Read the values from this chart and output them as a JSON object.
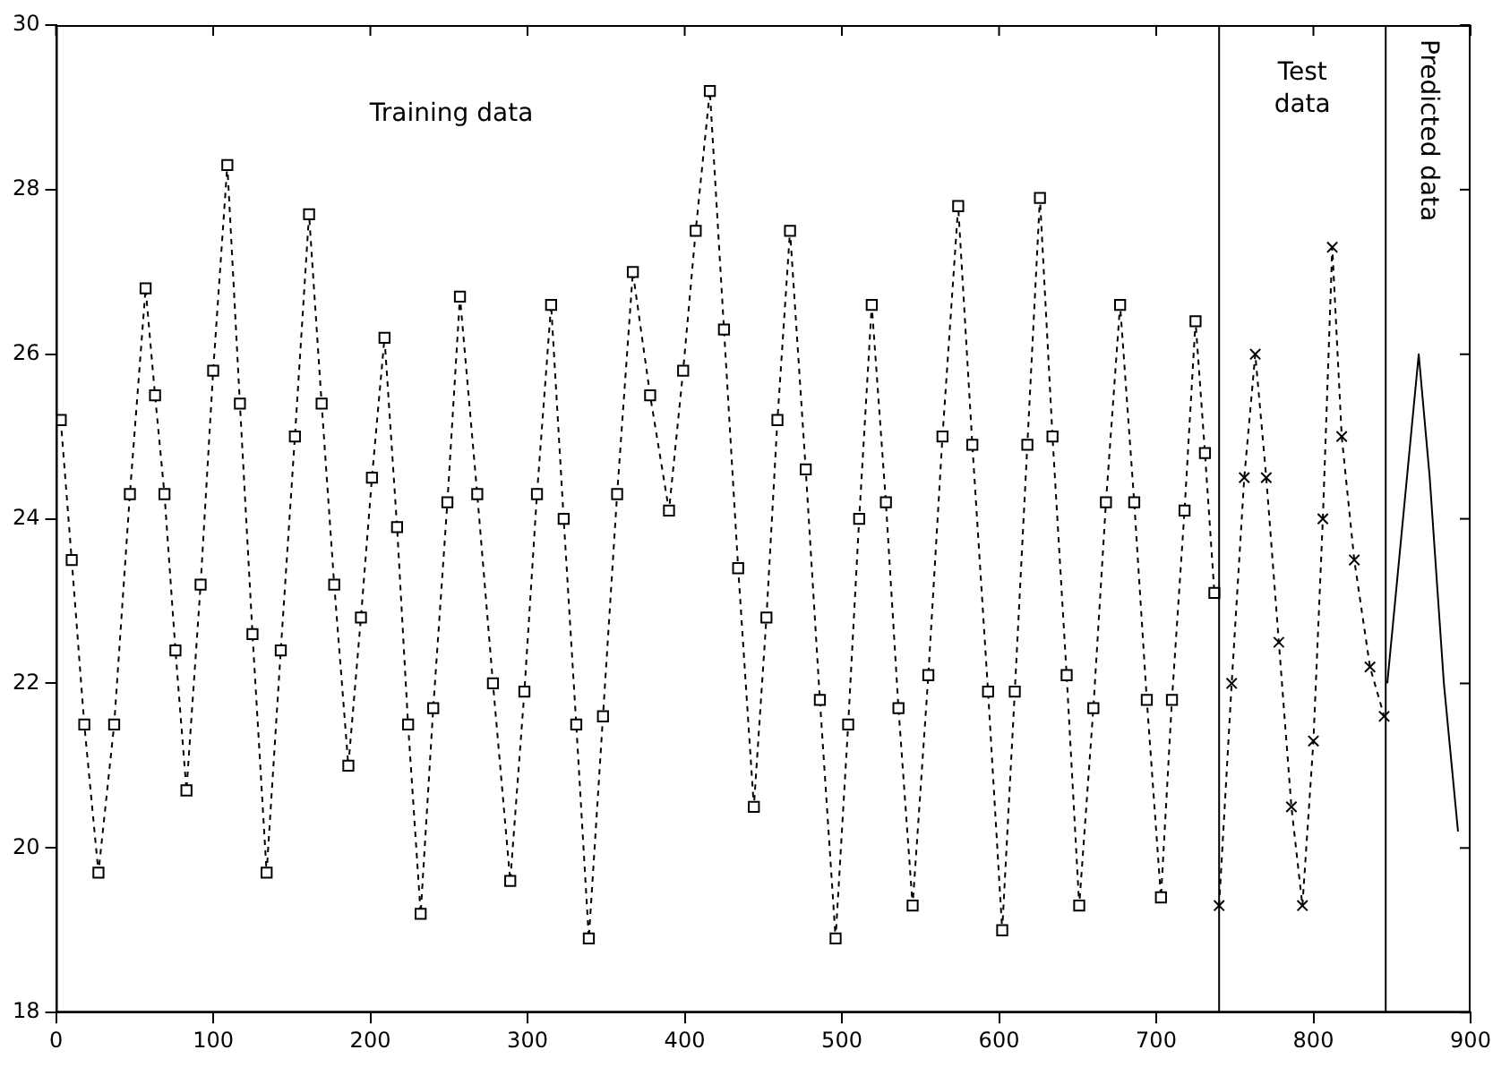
{
  "chart_data": {
    "type": "line",
    "xlim": [
      0,
      900
    ],
    "xticks": [
      0,
      100,
      200,
      300,
      400,
      500,
      600,
      700,
      800,
      900
    ],
    "ylim": [
      18,
      30
    ],
    "yticks": [
      18,
      20,
      22,
      24,
      26,
      28,
      30
    ],
    "grid": false,
    "legend": false,
    "series": [
      {
        "color": "#000000",
        "marker": "square",
        "line_style": "dashed",
        "x": [
          3,
          10,
          18,
          27,
          37,
          47,
          57,
          63,
          69,
          76,
          83,
          92,
          100,
          109,
          117,
          125,
          134,
          143,
          152,
          161,
          169,
          177,
          186,
          194,
          201,
          209,
          217,
          224,
          232,
          240,
          249,
          257,
          268,
          278,
          289,
          298,
          306,
          315,
          323,
          331,
          339,
          348,
          357,
          367,
          378,
          390,
          399,
          407,
          416,
          425,
          434,
          444,
          452,
          459,
          467,
          477,
          486,
          496,
          504,
          511,
          519,
          528,
          536,
          545,
          555,
          564,
          574,
          583,
          593,
          602,
          610,
          618,
          626,
          634,
          643,
          651,
          660,
          668,
          677,
          686,
          694,
          703,
          710,
          718,
          725,
          731,
          737
        ],
        "values": [
          25.2,
          23.5,
          21.5,
          19.7,
          21.5,
          24.3,
          26.8,
          25.5,
          24.3,
          22.4,
          20.7,
          23.2,
          25.8,
          28.3,
          25.4,
          22.6,
          19.7,
          22.4,
          25.0,
          27.7,
          25.4,
          23.2,
          21.0,
          22.8,
          24.5,
          26.2,
          23.9,
          21.5,
          19.2,
          21.7,
          24.2,
          26.7,
          24.3,
          22.0,
          19.6,
          21.9,
          24.3,
          26.6,
          24.0,
          21.5,
          18.9,
          21.6,
          24.3,
          27.0,
          25.5,
          24.1,
          25.8,
          27.5,
          29.2,
          26.3,
          23.4,
          20.5,
          22.8,
          25.2,
          27.5,
          24.6,
          21.8,
          18.9,
          21.5,
          24.0,
          26.6,
          24.2,
          21.7,
          19.3,
          22.1,
          25.0,
          27.8,
          24.9,
          21.9,
          19.0,
          21.9,
          24.9,
          27.9,
          25.0,
          22.1,
          19.3,
          21.7,
          24.2,
          26.6,
          24.2,
          21.8,
          19.4,
          21.8,
          24.1,
          26.4,
          24.8,
          23.1
        ]
      },
      {
        "color": "#000000",
        "marker": "cross",
        "line_style": "dashed",
        "x": [
          740,
          748,
          756,
          763,
          770,
          778,
          786,
          793,
          800,
          806,
          812,
          818,
          826,
          836,
          845
        ],
        "values": [
          19.3,
          22.0,
          24.5,
          26.0,
          24.5,
          22.5,
          20.5,
          19.3,
          21.3,
          24.0,
          27.3,
          25.0,
          23.5,
          22.2,
          21.6
        ]
      },
      {
        "color": "#000000",
        "marker": "none",
        "line_style": "solid",
        "x": [
          847,
          857,
          867,
          874,
          883,
          892
        ],
        "values": [
          22.0,
          24.0,
          26.0,
          24.5,
          22.0,
          20.2
        ]
      }
    ],
    "ref_lines": [
      {
        "axis": "x",
        "value": 740,
        "color": "#000000"
      },
      {
        "axis": "x",
        "value": 846,
        "color": "#000000"
      }
    ],
    "annotations": [
      "Training data",
      "Test data",
      "Predicted data"
    ]
  }
}
